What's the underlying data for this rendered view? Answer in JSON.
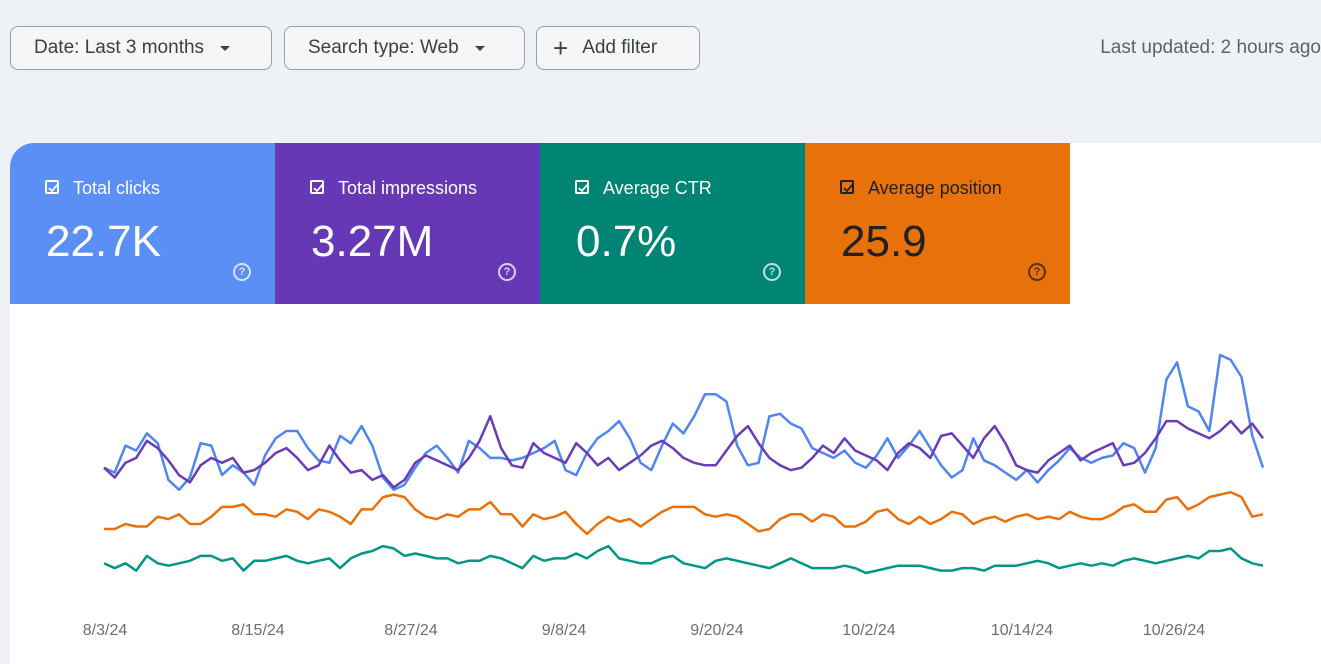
{
  "filters": {
    "date_label": "Date: Last 3 months",
    "search_type_label": "Search type: Web",
    "add_filter_label": "Add filter"
  },
  "status": {
    "last_updated": "Last updated: 2 hours ago"
  },
  "metrics": [
    {
      "label": "Total clicks",
      "value": "22.7K",
      "color": "#5b8ff5",
      "text_color": "#ffffff",
      "checked": true
    },
    {
      "label": "Total impressions",
      "value": "3.27M",
      "color": "#6638b6",
      "text_color": "#ffffff",
      "checked": true
    },
    {
      "label": "Average CTR",
      "value": "0.7%",
      "color": "#008575",
      "text_color": "#ffffff",
      "checked": true
    },
    {
      "label": "Average position",
      "value": "25.9",
      "color": "#e8710a",
      "text_color": "#202124",
      "checked": true
    }
  ],
  "chart_data": {
    "type": "line",
    "x_labels": [
      "8/3/24",
      "8/15/24",
      "8/27/24",
      "9/8/24",
      "9/20/24",
      "10/2/24",
      "10/14/24",
      "10/26/24"
    ],
    "grid": false,
    "normalized": true,
    "series": [
      {
        "name": "Total clicks",
        "color": "#4f86f0",
        "values": [
          0.54,
          0.52,
          0.63,
          0.61,
          0.68,
          0.64,
          0.49,
          0.45,
          0.5,
          0.64,
          0.63,
          0.51,
          0.55,
          0.52,
          0.47,
          0.59,
          0.66,
          0.69,
          0.69,
          0.62,
          0.57,
          0.56,
          0.67,
          0.64,
          0.71,
          0.63,
          0.5,
          0.45,
          0.47,
          0.54,
          0.6,
          0.63,
          0.58,
          0.52,
          0.65,
          0.62,
          0.58,
          0.58,
          0.57,
          0.58,
          0.6,
          0.62,
          0.65,
          0.53,
          0.51,
          0.6,
          0.66,
          0.69,
          0.73,
          0.66,
          0.56,
          0.53,
          0.63,
          0.72,
          0.68,
          0.75,
          0.84,
          0.84,
          0.81,
          0.63,
          0.55,
          0.56,
          0.75,
          0.76,
          0.72,
          0.7,
          0.62,
          0.6,
          0.58,
          0.61,
          0.56,
          0.54,
          0.59,
          0.66,
          0.58,
          0.63,
          0.69,
          0.62,
          0.55,
          0.5,
          0.53,
          0.66,
          0.57,
          0.55,
          0.52,
          0.49,
          0.53,
          0.48,
          0.53,
          0.57,
          0.62,
          0.58,
          0.56,
          0.58,
          0.59,
          0.64,
          0.62,
          0.52,
          0.62,
          0.9,
          0.97,
          0.79,
          0.77,
          0.69,
          1.0,
          0.98,
          0.91,
          0.67,
          0.54
        ]
      },
      {
        "name": "Total impressions",
        "color": "#6a3cb8",
        "values": [
          0.54,
          0.5,
          0.56,
          0.58,
          0.65,
          0.62,
          0.57,
          0.51,
          0.48,
          0.55,
          0.58,
          0.56,
          0.58,
          0.52,
          0.53,
          0.56,
          0.6,
          0.62,
          0.58,
          0.53,
          0.55,
          0.63,
          0.57,
          0.52,
          0.53,
          0.49,
          0.51,
          0.46,
          0.49,
          0.56,
          0.59,
          0.57,
          0.55,
          0.53,
          0.58,
          0.65,
          0.75,
          0.62,
          0.55,
          0.54,
          0.64,
          0.6,
          0.58,
          0.56,
          0.64,
          0.6,
          0.55,
          0.58,
          0.53,
          0.56,
          0.59,
          0.63,
          0.65,
          0.62,
          0.58,
          0.56,
          0.55,
          0.55,
          0.61,
          0.67,
          0.71,
          0.64,
          0.58,
          0.55,
          0.53,
          0.54,
          0.58,
          0.63,
          0.6,
          0.66,
          0.61,
          0.59,
          0.57,
          0.53,
          0.6,
          0.64,
          0.62,
          0.58,
          0.67,
          0.68,
          0.63,
          0.58,
          0.66,
          0.71,
          0.64,
          0.55,
          0.53,
          0.52,
          0.57,
          0.6,
          0.63,
          0.57,
          0.6,
          0.62,
          0.64,
          0.55,
          0.56,
          0.6,
          0.66,
          0.73,
          0.73,
          0.7,
          0.68,
          0.66,
          0.69,
          0.73,
          0.68,
          0.72,
          0.66
        ]
      },
      {
        "name": "Average position",
        "color": "#e8710a",
        "values": [
          0.29,
          0.29,
          0.31,
          0.3,
          0.3,
          0.34,
          0.33,
          0.35,
          0.31,
          0.31,
          0.34,
          0.38,
          0.38,
          0.39,
          0.35,
          0.35,
          0.34,
          0.37,
          0.36,
          0.33,
          0.37,
          0.36,
          0.34,
          0.31,
          0.37,
          0.37,
          0.42,
          0.43,
          0.42,
          0.37,
          0.34,
          0.33,
          0.35,
          0.34,
          0.37,
          0.37,
          0.4,
          0.35,
          0.35,
          0.3,
          0.35,
          0.33,
          0.34,
          0.36,
          0.31,
          0.27,
          0.31,
          0.34,
          0.32,
          0.33,
          0.3,
          0.33,
          0.36,
          0.38,
          0.38,
          0.38,
          0.35,
          0.34,
          0.35,
          0.34,
          0.31,
          0.28,
          0.29,
          0.33,
          0.35,
          0.35,
          0.32,
          0.35,
          0.34,
          0.3,
          0.3,
          0.32,
          0.36,
          0.37,
          0.33,
          0.31,
          0.34,
          0.31,
          0.33,
          0.36,
          0.35,
          0.31,
          0.33,
          0.34,
          0.32,
          0.34,
          0.35,
          0.33,
          0.34,
          0.33,
          0.36,
          0.34,
          0.33,
          0.33,
          0.35,
          0.38,
          0.39,
          0.36,
          0.36,
          0.41,
          0.42,
          0.37,
          0.39,
          0.42,
          0.43,
          0.44,
          0.42,
          0.34,
          0.35
        ]
      },
      {
        "name": "Average CTR",
        "color": "#009688",
        "values": [
          0.15,
          0.13,
          0.15,
          0.12,
          0.18,
          0.15,
          0.14,
          0.15,
          0.16,
          0.18,
          0.18,
          0.16,
          0.17,
          0.12,
          0.16,
          0.16,
          0.17,
          0.18,
          0.16,
          0.15,
          0.16,
          0.17,
          0.13,
          0.17,
          0.19,
          0.2,
          0.22,
          0.21,
          0.18,
          0.19,
          0.18,
          0.17,
          0.17,
          0.15,
          0.16,
          0.16,
          0.18,
          0.17,
          0.15,
          0.13,
          0.18,
          0.16,
          0.17,
          0.17,
          0.19,
          0.17,
          0.2,
          0.22,
          0.17,
          0.16,
          0.15,
          0.15,
          0.17,
          0.18,
          0.15,
          0.14,
          0.13,
          0.16,
          0.17,
          0.16,
          0.15,
          0.14,
          0.13,
          0.15,
          0.17,
          0.15,
          0.13,
          0.13,
          0.13,
          0.14,
          0.13,
          0.11,
          0.12,
          0.13,
          0.14,
          0.14,
          0.14,
          0.13,
          0.12,
          0.12,
          0.13,
          0.13,
          0.12,
          0.14,
          0.14,
          0.14,
          0.15,
          0.16,
          0.15,
          0.13,
          0.14,
          0.15,
          0.14,
          0.15,
          0.14,
          0.16,
          0.17,
          0.16,
          0.15,
          0.16,
          0.17,
          0.18,
          0.17,
          0.2,
          0.2,
          0.21,
          0.17,
          0.15,
          0.14
        ]
      }
    ]
  }
}
